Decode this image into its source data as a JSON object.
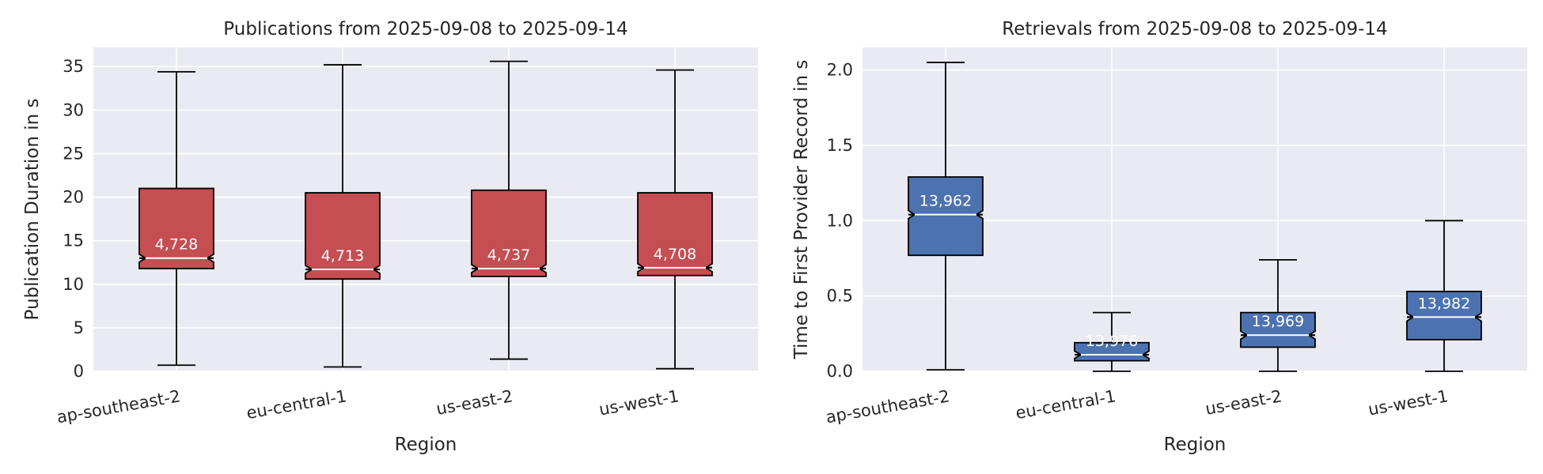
{
  "chart_data": [
    {
      "type": "boxplot",
      "title": "Publications from 2025-09-08 to 2025-09-14",
      "xlabel": "Region",
      "ylabel": "Publication Duration in s",
      "categories": [
        "ap-southeast-2",
        "eu-central-1",
        "us-east-2",
        "us-west-1"
      ],
      "ylim": [
        0,
        37.2
      ],
      "yticks": [
        0,
        5,
        10,
        15,
        20,
        25,
        30,
        35
      ],
      "ytick_labels": [
        "0",
        "5",
        "10",
        "15",
        "20",
        "25",
        "30",
        "35"
      ],
      "notched": true,
      "box_color": "#c44e52",
      "boxes": [
        {
          "whislo": 0.7,
          "q1": 11.8,
          "med": 13.0,
          "q3": 21.0,
          "whishi": 34.4,
          "count": "4,728"
        },
        {
          "whislo": 0.5,
          "q1": 10.6,
          "med": 11.7,
          "q3": 20.5,
          "whishi": 35.2,
          "count": "4,713"
        },
        {
          "whislo": 1.4,
          "q1": 10.9,
          "med": 11.8,
          "q3": 20.8,
          "whishi": 35.6,
          "count": "4,737"
        },
        {
          "whislo": 0.3,
          "q1": 11.0,
          "med": 11.9,
          "q3": 20.5,
          "whishi": 34.6,
          "count": "4,708"
        }
      ],
      "grid": true
    },
    {
      "type": "boxplot",
      "title": "Retrievals from 2025-09-08 to 2025-09-14",
      "xlabel": "Region",
      "ylabel": "Time to First Provider Record in s",
      "categories": [
        "ap-southeast-2",
        "eu-central-1",
        "us-east-2",
        "us-west-1"
      ],
      "ylim": [
        0,
        2.15
      ],
      "yticks": [
        0,
        0.5,
        1.0,
        1.5,
        2.0
      ],
      "ytick_labels": [
        "0.0",
        "0.5",
        "1.0",
        "1.5",
        "2.0"
      ],
      "notched": true,
      "box_color": "#4c72b0",
      "boxes": [
        {
          "whislo": 0.01,
          "q1": 0.77,
          "med": 1.04,
          "q3": 1.29,
          "whishi": 2.05,
          "count": "13,962"
        },
        {
          "whislo": 0.0,
          "q1": 0.07,
          "med": 0.11,
          "q3": 0.19,
          "whishi": 0.39,
          "count": "13,976"
        },
        {
          "whislo": 0.0,
          "q1": 0.16,
          "med": 0.24,
          "q3": 0.39,
          "whishi": 0.74,
          "count": "13,969"
        },
        {
          "whislo": 0.0,
          "q1": 0.21,
          "med": 0.36,
          "q3": 0.53,
          "whishi": 1.0,
          "count": "13,982"
        }
      ],
      "grid": true
    }
  ]
}
